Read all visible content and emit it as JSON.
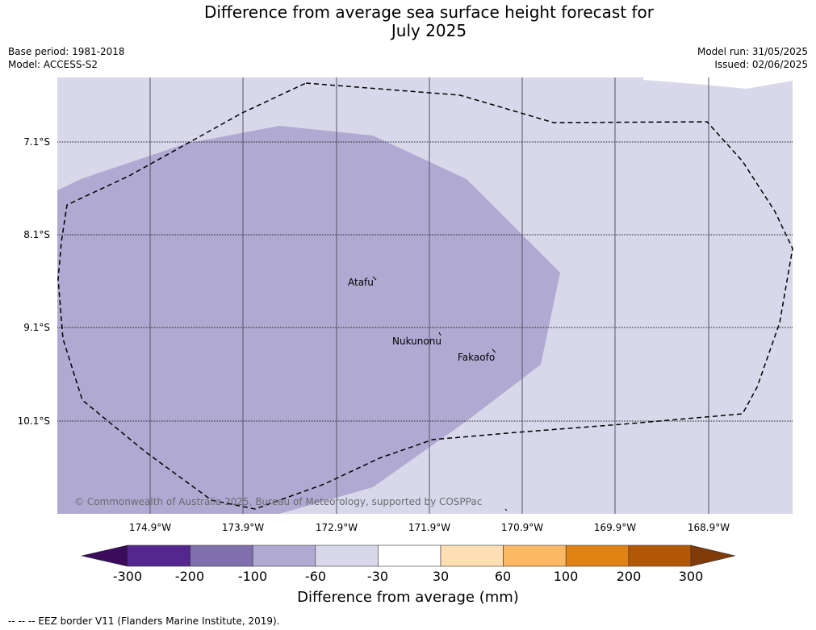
{
  "title_line1": "Difference from average sea surface height forecast for",
  "title_line2": "July 2025",
  "meta": {
    "base_period": "Base period: 1981-2018",
    "model": "Model: ACCESS-S2",
    "model_run": "Model run: 31/05/2025",
    "issued": "Issued: 02/06/2025"
  },
  "map": {
    "lat_labels": [
      "7.1°S",
      "8.1°S",
      "9.1°S",
      "10.1°S"
    ],
    "lon_labels": [
      "174.9°W",
      "173.9°W",
      "172.9°W",
      "171.9°W",
      "170.9°W",
      "169.9°W",
      "168.9°W"
    ],
    "places": [
      "Atafu",
      "Nukunonu",
      "Fakaofo"
    ],
    "copyright": "© Commonwealth of Australia 2025, Bureau of Meteorology, supported by COSPPac",
    "colors": {
      "background_class": "#d8d8ea",
      "anomaly_class": "#b0aad2"
    }
  },
  "colorbar": {
    "title": "Difference from average (mm)",
    "ticks": [
      "-300",
      "-200",
      "-100",
      "-60",
      "-30",
      "30",
      "60",
      "100",
      "200",
      "300"
    ],
    "colors": [
      "#3b0b5c",
      "#54278f",
      "#7f6fad",
      "#b0aad2",
      "#d8d8ea",
      "#ffffff",
      "#fedfb3",
      "#fdb863",
      "#e08214",
      "#b35806",
      "#7f3b08"
    ]
  },
  "footnote": "--  --  -- EEZ border V11 (Flanders Marine Institute, 2019)."
}
